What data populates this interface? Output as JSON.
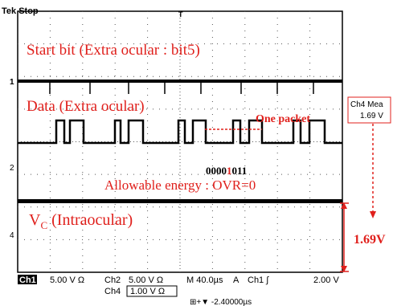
{
  "header": {
    "status": "Tek Stop",
    "trigger_marker": "T"
  },
  "channel_markers": [
    "1",
    "2",
    "4"
  ],
  "annotations": {
    "start_bit": "Start bit (Extra ocular : bit5)",
    "data": "Data (Extra ocular)",
    "one_packet": "One packet",
    "bits": {
      "before": "0000",
      "highlight": "1",
      "after": "011"
    },
    "allowable": "Allowable energy : OVR=0",
    "vc": {
      "symbol": "V",
      "subscript": "C",
      "rest": " (Intraocular)"
    },
    "amplitude": "1.69V"
  },
  "measurement": {
    "label": "Ch4 Mea",
    "value": "1.69 V"
  },
  "status_bar": {
    "ch1": "Ch1",
    "ch1_scale": "5.00 V Ω",
    "ch2": "Ch2",
    "ch2_scale": "5.00 V Ω",
    "timebase": "M 40.0µs",
    "acq": "A",
    "trigger": "Ch1 ∫",
    "trigger_level": "2.00 V",
    "ch4": "Ch4",
    "ch4_scale": "1.00 V Ω",
    "position": "⊞+▼ -2.40000µs"
  }
}
